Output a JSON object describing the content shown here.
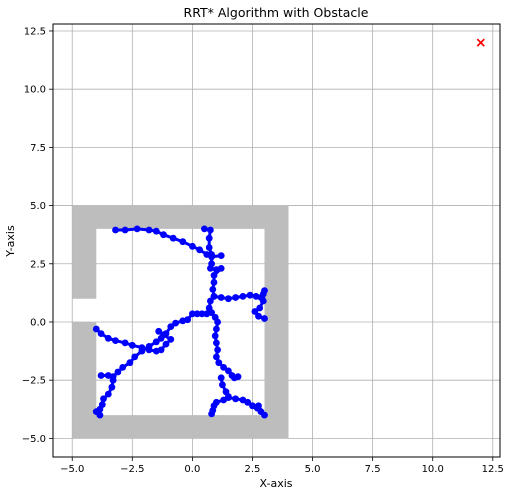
{
  "chart_data": {
    "type": "scatter",
    "title": "RRT* Algorithm with Obstacle",
    "xlabel": "X-axis",
    "ylabel": "Y-axis",
    "xlim": [
      -5.8,
      12.8
    ],
    "ylim": [
      -5.8,
      12.8
    ],
    "xticks": [
      -5.0,
      -2.5,
      0.0,
      2.5,
      5.0,
      7.5,
      10.0,
      12.5
    ],
    "yticks": [
      -5.0,
      -2.5,
      0.0,
      2.5,
      5.0,
      7.5,
      10.0,
      12.5
    ],
    "xtick_labels": [
      "−5.0",
      "−2.5",
      "0.0",
      "2.5",
      "5.0",
      "7.5",
      "10.0",
      "12.5"
    ],
    "ytick_labels": [
      "−5.0",
      "−2.5",
      "0.0",
      "2.5",
      "5.0",
      "7.5",
      "10.0",
      "12.5"
    ],
    "grid": true,
    "colors": {
      "obstacle": "#bdbdbd",
      "tree": "#0000ff",
      "goal": "#ff0000",
      "grid": "#b0b0b0"
    },
    "obstacle_polygon": [
      [
        -5,
        5
      ],
      [
        4,
        5
      ],
      [
        4,
        -5
      ],
      [
        -5,
        -5
      ],
      [
        -5,
        0
      ],
      [
        -4,
        0
      ],
      [
        -4,
        -4
      ],
      [
        3,
        -4
      ],
      [
        3,
        4
      ],
      [
        -4,
        4
      ],
      [
        -4,
        1
      ],
      [
        -5,
        1
      ]
    ],
    "goal": {
      "x": 12,
      "y": 12,
      "marker": "x"
    },
    "tree_branches": [
      [
        [
          -3.2,
          3.95
        ],
        [
          -2.8,
          3.95
        ],
        [
          -2.3,
          4.0
        ],
        [
          -1.8,
          3.95
        ],
        [
          -1.5,
          3.9
        ],
        [
          -1.2,
          3.75
        ],
        [
          -0.8,
          3.6
        ],
        [
          -0.4,
          3.45
        ],
        [
          0.0,
          3.25
        ],
        [
          0.3,
          3.1
        ],
        [
          0.6,
          2.9
        ],
        [
          0.8,
          2.8
        ],
        [
          1.2,
          2.85
        ]
      ],
      [
        [
          0.5,
          4.0
        ],
        [
          0.75,
          3.95
        ],
        [
          0.7,
          3.6
        ],
        [
          0.7,
          3.2
        ],
        [
          0.8,
          2.9
        ],
        [
          0.8,
          2.5
        ],
        [
          0.75,
          2.3
        ],
        [
          1.0,
          2.25
        ],
        [
          1.2,
          2.3
        ],
        [
          0.9,
          2.0
        ],
        [
          0.9,
          1.7
        ],
        [
          0.85,
          1.4
        ],
        [
          0.9,
          1.1
        ],
        [
          0.75,
          0.9
        ],
        [
          0.7,
          0.6
        ],
        [
          0.6,
          0.35
        ],
        [
          0.4,
          0.35
        ],
        [
          0.2,
          0.35
        ],
        [
          0.0,
          0.35
        ],
        [
          -0.2,
          0.1
        ],
        [
          -0.4,
          0.05
        ],
        [
          -0.7,
          -0.05
        ],
        [
          -0.9,
          -0.2
        ],
        [
          -1.1,
          -0.5
        ],
        [
          -1.3,
          -0.7
        ],
        [
          -1.5,
          -0.85
        ],
        [
          -1.8,
          -1.05
        ],
        [
          -2.1,
          -1.25
        ],
        [
          -2.4,
          -1.5
        ],
        [
          -2.6,
          -1.75
        ],
        [
          -2.9,
          -1.95
        ],
        [
          -3.1,
          -2.15
        ],
        [
          -3.3,
          -2.35
        ],
        [
          -3.5,
          -2.3
        ],
        [
          -3.8,
          -2.3
        ]
      ],
      [
        [
          -3.3,
          -2.5
        ],
        [
          -3.35,
          -2.8
        ],
        [
          -3.5,
          -3.1
        ],
        [
          -3.7,
          -3.3
        ],
        [
          -3.75,
          -3.55
        ],
        [
          -3.85,
          -3.75
        ],
        [
          -4.0,
          -3.85
        ],
        [
          -3.85,
          -4.0
        ]
      ],
      [
        [
          -4.0,
          -0.3
        ],
        [
          -3.8,
          -0.5
        ],
        [
          -3.5,
          -0.7
        ],
        [
          -3.2,
          -0.8
        ],
        [
          -2.8,
          -0.9
        ],
        [
          -2.5,
          -1.0
        ],
        [
          -2.1,
          -1.1
        ],
        [
          -1.8,
          -1.2
        ],
        [
          -1.5,
          -1.25
        ],
        [
          -1.3,
          -1.2
        ],
        [
          -1.1,
          -0.95
        ],
        [
          -0.9,
          -0.75
        ],
        [
          -1.2,
          -0.55
        ],
        [
          -1.4,
          -0.4
        ]
      ],
      [
        [
          0.8,
          0.4
        ],
        [
          0.95,
          0.2
        ],
        [
          1.05,
          0.0
        ],
        [
          1.0,
          -0.3
        ],
        [
          0.95,
          -0.6
        ],
        [
          1.0,
          -0.9
        ],
        [
          1.05,
          -1.2
        ],
        [
          1.0,
          -1.5
        ],
        [
          1.1,
          -1.75
        ],
        [
          1.3,
          -1.95
        ],
        [
          1.5,
          -2.1
        ],
        [
          1.65,
          -2.3
        ],
        [
          1.75,
          -2.4
        ],
        [
          1.9,
          -2.35
        ]
      ],
      [
        [
          0.9,
          1.1
        ],
        [
          1.2,
          1.05
        ],
        [
          1.5,
          1.0
        ],
        [
          1.8,
          1.05
        ],
        [
          2.1,
          1.1
        ],
        [
          2.4,
          1.15
        ],
        [
          2.65,
          1.1
        ],
        [
          2.85,
          1.05
        ],
        [
          2.95,
          1.2
        ],
        [
          3.0,
          1.35
        ],
        [
          2.95,
          0.9
        ],
        [
          2.8,
          0.6
        ],
        [
          2.6,
          0.45
        ],
        [
          2.75,
          0.25
        ],
        [
          3.0,
          0.15
        ]
      ],
      [
        [
          1.2,
          -2.4
        ],
        [
          1.25,
          -2.7
        ],
        [
          1.4,
          -3.0
        ],
        [
          1.5,
          -3.2
        ],
        [
          1.3,
          -3.35
        ],
        [
          1.0,
          -3.45
        ],
        [
          0.9,
          -3.6
        ],
        [
          0.85,
          -3.8
        ],
        [
          0.8,
          -3.95
        ]
      ],
      [
        [
          1.5,
          -3.25
        ],
        [
          1.8,
          -3.3
        ],
        [
          2.1,
          -3.35
        ],
        [
          2.3,
          -3.45
        ],
        [
          2.5,
          -3.6
        ],
        [
          2.7,
          -3.7
        ],
        [
          2.85,
          -3.85
        ],
        [
          3.0,
          -4.0
        ],
        [
          2.75,
          -3.6
        ]
      ]
    ]
  }
}
